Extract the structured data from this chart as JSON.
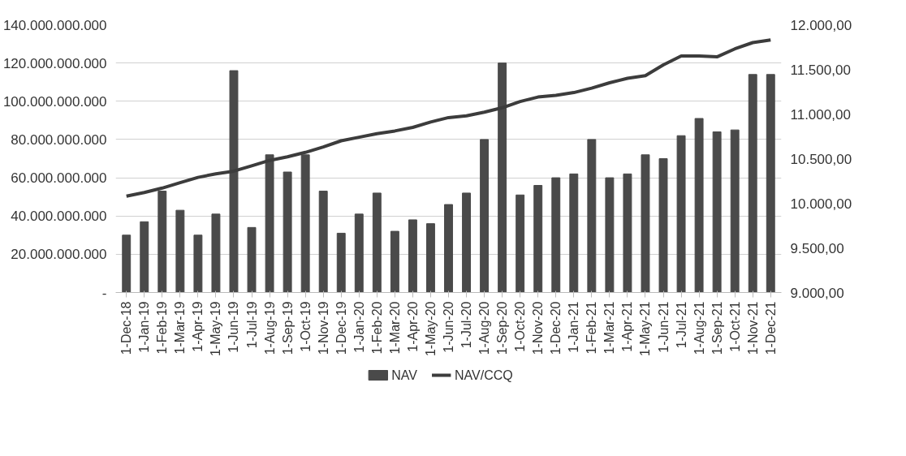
{
  "chart_data": {
    "type": "bar",
    "categories": [
      "1-Dec-18",
      "1-Jan-19",
      "1-Feb-19",
      "1-Mar-19",
      "1-Apr-19",
      "1-May-19",
      "1-Jun-19",
      "1-Jul-19",
      "1-Aug-19",
      "1-Sep-19",
      "1-Oct-19",
      "1-Nov-19",
      "1-Dec-19",
      "1-Jan-20",
      "1-Feb-20",
      "1-Mar-20",
      "1-Apr-20",
      "1-May-20",
      "1-Jun-20",
      "1-Jul-20",
      "1-Aug-20",
      "1-Sep-20",
      "1-Oct-20",
      "1-Nov-20",
      "1-Dec-20",
      "1-Jan-21",
      "1-Feb-21",
      "1-Mar-21",
      "1-Apr-21",
      "1-May-21",
      "1-Jun-21",
      "1-Jul-21",
      "1-Aug-21",
      "1-Sep-21",
      "1-Oct-21",
      "1-Nov-21",
      "1-Dec-21"
    ],
    "series": [
      {
        "name": "NAV",
        "color": "#4a4a4a",
        "values": [
          30000000000,
          37000000000,
          53000000000,
          43000000000,
          30000000000,
          41000000000,
          116000000000,
          34000000000,
          72000000000,
          63000000000,
          72000000000,
          53000000000,
          31000000000,
          41000000000,
          52000000000,
          32000000000,
          38000000000,
          36000000000,
          46000000000,
          52000000000,
          80000000000,
          120000000000,
          51000000000,
          56000000000,
          60000000000,
          62000000000,
          80000000000,
          60000000000,
          62000000000,
          72000000000,
          70000000000,
          82000000000,
          91000000000,
          84000000000,
          85000000000,
          114000000000,
          114000000000
        ]
      },
      {
        "name": "NAV/CCQ",
        "type": "line",
        "axis": "y2",
        "color": "#3c3c3c",
        "values": [
          10080,
          10120,
          10170,
          10230,
          10290,
          10330,
          10360,
          10420,
          10480,
          10520,
          10570,
          10630,
          10700,
          10740,
          10780,
          10810,
          10850,
          10910,
          10960,
          10980,
          11020,
          11070,
          11140,
          11190,
          11210,
          11240,
          11290,
          11350,
          11400,
          11430,
          11550,
          11650,
          11650,
          11640,
          11730,
          11800,
          11830
        ]
      }
    ],
    "ylim": [
      0,
      140000000000
    ],
    "yticks": [
      {
        "value": 0,
        "label": "-"
      },
      {
        "value": 20000000000,
        "label": "20.000.000.000"
      },
      {
        "value": 40000000000,
        "label": "40.000.000.000"
      },
      {
        "value": 60000000000,
        "label": "60.000.000.000"
      },
      {
        "value": 80000000000,
        "label": "80.000.000.000"
      },
      {
        "value": 100000000000,
        "label": "100.000.000.000"
      },
      {
        "value": 120000000000,
        "label": "120.000.000.000"
      },
      {
        "value": 140000000000,
        "label": "140.000.000.000"
      }
    ],
    "y2lim": [
      9000,
      12000
    ],
    "y2ticks": [
      {
        "value": 9000,
        "label": "9.000,00"
      },
      {
        "value": 9500,
        "label": "9.500,00"
      },
      {
        "value": 10000,
        "label": "10.000,00"
      },
      {
        "value": 10500,
        "label": "10.500,00"
      },
      {
        "value": 11000,
        "label": "11.000,00"
      },
      {
        "value": 11500,
        "label": "11.500,00"
      },
      {
        "value": 12000,
        "label": "12.000,00"
      }
    ],
    "grid": "y",
    "legend": "bottom"
  }
}
